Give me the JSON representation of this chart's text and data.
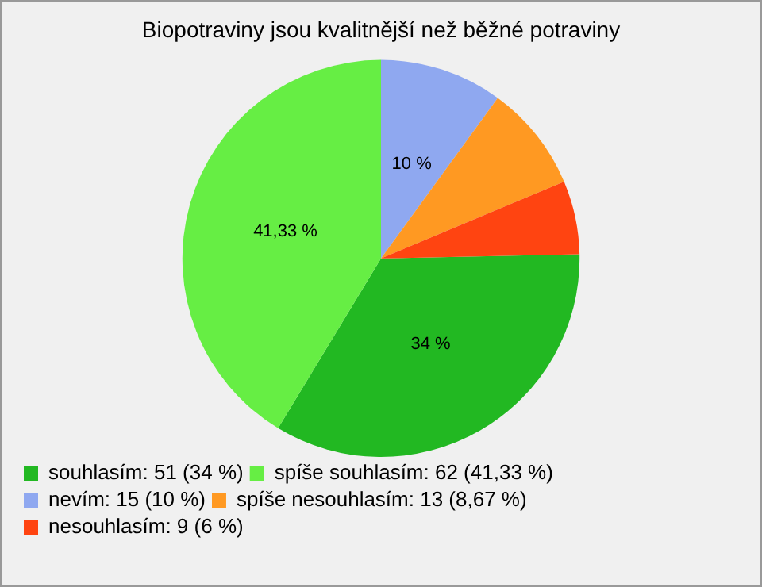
{
  "chart_data": {
    "type": "pie",
    "title": "Biopotraviny jsou kvalitnější než běžné potraviny",
    "categories": [
      "souhlasím: 51 (34 %)",
      "spíše souhlasím: 62 (41,33 %)",
      "nevím: 15 (10 %)",
      "spíše nesouhlasím: 13 (8,67 %)",
      "nesouhlasím: 9 (6 %)"
    ],
    "values": [
      34,
      41.33,
      10,
      8.67,
      6
    ],
    "value_labels": [
      "34 %",
      "41,33 %",
      "10 %",
      null,
      null
    ],
    "colors": [
      "#22b822",
      "#66ee44",
      "#8fa8f0",
      "#ff9922",
      "#ff4411"
    ],
    "legend": "bottom left"
  }
}
